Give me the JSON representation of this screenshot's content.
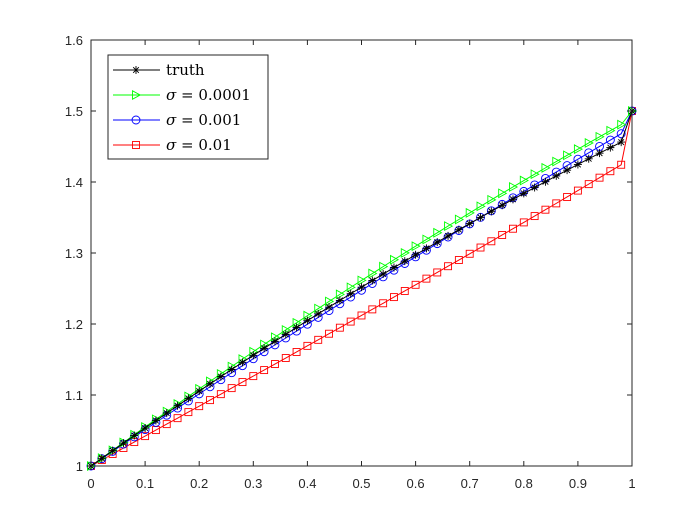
{
  "chart_data": {
    "type": "line",
    "title": "",
    "xlabel": "",
    "ylabel": "",
    "xlim": [
      0,
      1
    ],
    "ylim": [
      1,
      1.6
    ],
    "xticks": [
      "0",
      "0.1",
      "0.2",
      "0.3",
      "0.4",
      "0.5",
      "0.6",
      "0.7",
      "0.8",
      "0.9",
      "1"
    ],
    "yticks": [
      "1",
      "1.1",
      "1.2",
      "1.3",
      "1.4",
      "1.5",
      "1.6"
    ],
    "grid": false,
    "legend_position": "top-left",
    "x": [
      0,
      0.02,
      0.04,
      0.06,
      0.08,
      0.1,
      0.12,
      0.14,
      0.16,
      0.18,
      0.2,
      0.22,
      0.24,
      0.26,
      0.28,
      0.3,
      0.32,
      0.34,
      0.36,
      0.38,
      0.4,
      0.42,
      0.44,
      0.46,
      0.48,
      0.5,
      0.52,
      0.54,
      0.56,
      0.58,
      0.6,
      0.62,
      0.64,
      0.66,
      0.68,
      0.7,
      0.72,
      0.74,
      0.76,
      0.78,
      0.8,
      0.82,
      0.84,
      0.86,
      0.88,
      0.9,
      0.92,
      0.94,
      0.96,
      0.98,
      1
    ],
    "series": [
      {
        "name": "truth",
        "legend_label": "truth",
        "color": "#000000",
        "marker": "asterisk",
        "values": [
          1,
          1.0108,
          1.0216,
          1.0323,
          1.0429,
          1.0535,
          1.064,
          1.0745,
          1.0849,
          1.0952,
          1.1055,
          1.1157,
          1.1259,
          1.1359,
          1.146,
          1.1559,
          1.1658,
          1.1756,
          1.1854,
          1.1951,
          1.2047,
          1.2143,
          1.2238,
          1.2332,
          1.2426,
          1.2519,
          1.2612,
          1.2704,
          1.2795,
          1.2885,
          1.2975,
          1.3065,
          1.3153,
          1.3241,
          1.3329,
          1.3415,
          1.3501,
          1.3587,
          1.3672,
          1.3756,
          1.3839,
          1.3922,
          1.4004,
          1.4086,
          1.4167,
          1.4247,
          1.4327,
          1.4406,
          1.4484,
          1.4562,
          1.5
        ]
      },
      {
        "name": "sigma = 0.0001",
        "legend_symbol": "σ",
        "legend_rest": " = 0.0001",
        "color": "#00ff00",
        "marker": "triangle-right",
        "values": [
          1,
          1.0111,
          1.0221,
          1.0331,
          1.0441,
          1.055,
          1.0658,
          1.0766,
          1.0873,
          1.098,
          1.1086,
          1.1192,
          1.1297,
          1.1401,
          1.1505,
          1.1609,
          1.1712,
          1.1814,
          1.1916,
          1.2017,
          1.2118,
          1.2218,
          1.2318,
          1.2417,
          1.2516,
          1.2614,
          1.2711,
          1.2808,
          1.2905,
          1.3001,
          1.3096,
          1.3191,
          1.3285,
          1.3379,
          1.3472,
          1.3565,
          1.3657,
          1.3749,
          1.384,
          1.393,
          1.4021,
          1.411,
          1.4199,
          1.4288,
          1.4376,
          1.4463,
          1.455,
          1.4637,
          1.4723,
          1.4808,
          1.5
        ]
      },
      {
        "name": "sigma = 0.001",
        "legend_symbol": "σ",
        "legend_rest": " = 0.001",
        "color": "#0000ff",
        "marker": "circle",
        "values": [
          1,
          1.0103,
          1.0206,
          1.0309,
          1.0411,
          1.0513,
          1.0614,
          1.0715,
          1.0816,
          1.0916,
          1.1016,
          1.1116,
          1.1215,
          1.1314,
          1.1413,
          1.1511,
          1.1609,
          1.1706,
          1.1803,
          1.19,
          1.1997,
          1.2093,
          1.2189,
          1.2285,
          1.238,
          1.2475,
          1.257,
          1.2664,
          1.2758,
          1.2852,
          1.2946,
          1.3039,
          1.3132,
          1.3225,
          1.3317,
          1.341,
          1.3502,
          1.3594,
          1.3685,
          1.3777,
          1.3868,
          1.3959,
          1.405,
          1.414,
          1.4231,
          1.4321,
          1.4411,
          1.4501,
          1.4591,
          1.468,
          1.5
        ]
      },
      {
        "name": "sigma = 0.01",
        "legend_symbol": "σ",
        "legend_rest": " = 0.01",
        "color": "#ff0000",
        "marker": "square",
        "values": [
          1,
          1.0084,
          1.0169,
          1.0253,
          1.0337,
          1.0421,
          1.0506,
          1.059,
          1.0674,
          1.0759,
          1.0843,
          1.0928,
          1.1012,
          1.1097,
          1.1182,
          1.1266,
          1.1351,
          1.1436,
          1.1521,
          1.1606,
          1.1692,
          1.1777,
          1.1863,
          1.1948,
          1.2034,
          1.212,
          1.2206,
          1.2292,
          1.2379,
          1.2465,
          1.2552,
          1.2639,
          1.2726,
          1.2814,
          1.2901,
          1.2989,
          1.3077,
          1.3165,
          1.3254,
          1.3342,
          1.3431,
          1.352,
          1.361,
          1.3699,
          1.3789,
          1.3879,
          1.397,
          1.4061,
          1.4152,
          1.4243,
          1.5
        ]
      }
    ]
  }
}
